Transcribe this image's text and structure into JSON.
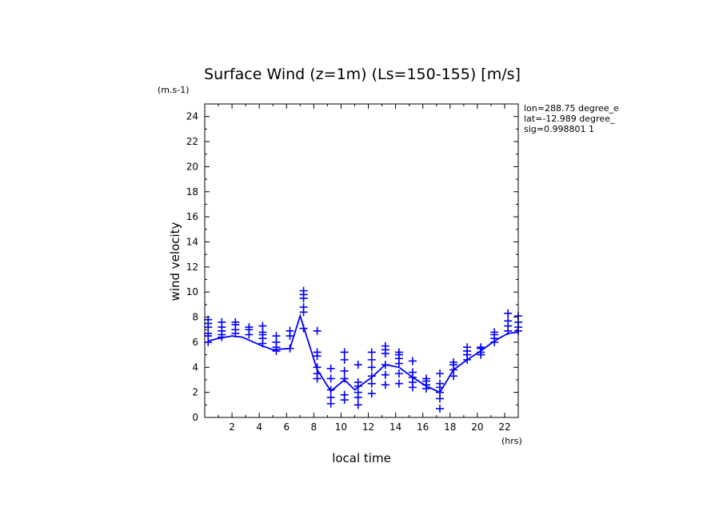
{
  "chart_data": {
    "type": "line",
    "title": "Surface Wind (z=1m) (Ls=150-155) [m/s]",
    "y_unit": "(m.s-1)",
    "x_unit": "(hrs)",
    "xlabel": "local time",
    "ylabel": "wind velocity",
    "xlim": [
      0,
      23
    ],
    "ylim": [
      0,
      25
    ],
    "x_ticks": [
      2,
      4,
      6,
      8,
      10,
      12,
      14,
      16,
      18,
      20,
      22
    ],
    "y_ticks": [
      0,
      2,
      4,
      6,
      8,
      10,
      12,
      14,
      16,
      18,
      20,
      22,
      24
    ],
    "annotations": [
      "lon=288.75 degree_e",
      "lat=-12.989 degree_",
      "sig=0.998801 1"
    ],
    "line_color": "#0000ff",
    "series": [
      {
        "values": [
          {
            "x": 0.25,
            "y": 6.1
          },
          {
            "x": 1.0,
            "y": 6.3
          },
          {
            "x": 2.0,
            "y": 6.5
          },
          {
            "x": 2.75,
            "y": 6.4
          },
          {
            "x": 4.0,
            "y": 5.8
          },
          {
            "x": 5.0,
            "y": 5.4
          },
          {
            "x": 6.25,
            "y": 5.5
          },
          {
            "x": 7.0,
            "y": 8.1
          },
          {
            "x": 8.25,
            "y": 3.8
          },
          {
            "x": 9.25,
            "y": 2.1
          },
          {
            "x": 10.25,
            "y": 3.0
          },
          {
            "x": 11.0,
            "y": 2.2
          },
          {
            "x": 12.25,
            "y": 3.2
          },
          {
            "x": 13.25,
            "y": 4.2
          },
          {
            "x": 14.25,
            "y": 4.0
          },
          {
            "x": 15.25,
            "y": 3.2
          },
          {
            "x": 16.25,
            "y": 2.5
          },
          {
            "x": 17.25,
            "y": 2.0
          },
          {
            "x": 18.25,
            "y": 3.8
          },
          {
            "x": 19.25,
            "y": 4.6
          },
          {
            "x": 20.25,
            "y": 5.3
          },
          {
            "x": 21.25,
            "y": 6.1
          },
          {
            "x": 22.25,
            "y": 6.7
          },
          {
            "x": 23.0,
            "y": 6.8
          }
        ]
      },
      {
        "values": [
          {
            "x": 0.25,
            "y": [
              6.0,
              6.5,
              6.7,
              7.2,
              7.5,
              7.8
            ]
          },
          {
            "x": 1.25,
            "y": [
              6.4,
              6.6,
              6.9,
              7.2,
              7.6
            ]
          },
          {
            "x": 2.25,
            "y": [
              6.7,
              7.0,
              7.4,
              7.6
            ]
          },
          {
            "x": 3.25,
            "y": [
              6.6,
              7.0,
              7.2
            ]
          },
          {
            "x": 4.25,
            "y": [
              5.9,
              6.3,
              6.6,
              6.8,
              7.3
            ]
          },
          {
            "x": 5.25,
            "y": [
              5.3,
              5.6,
              6.0,
              6.5
            ]
          },
          {
            "x": 6.25,
            "y": [
              5.5,
              6.5,
              6.9
            ]
          },
          {
            "x": 7.25,
            "y": [
              7.1,
              8.4,
              8.8,
              9.5,
              9.8,
              10.1
            ]
          },
          {
            "x": 8.25,
            "y": [
              3.1,
              3.5,
              4.0,
              4.9,
              5.2,
              6.9
            ]
          },
          {
            "x": 9.25,
            "y": [
              1.1,
              1.6,
              2.2,
              3.1,
              3.9
            ]
          },
          {
            "x": 10.25,
            "y": [
              1.4,
              1.8,
              3.1,
              3.7,
              4.6,
              5.2
            ]
          },
          {
            "x": 11.25,
            "y": [
              1.0,
              1.6,
              2.0,
              2.5,
              2.8,
              4.2
            ]
          },
          {
            "x": 12.25,
            "y": [
              1.9,
              2.7,
              3.3,
              4.0,
              4.6,
              5.2
            ]
          },
          {
            "x": 13.25,
            "y": [
              2.6,
              3.4,
              4.2,
              5.1,
              5.4,
              5.7
            ]
          },
          {
            "x": 14.25,
            "y": [
              2.7,
              3.5,
              4.3,
              4.7,
              5.0,
              5.2
            ]
          },
          {
            "x": 15.25,
            "y": [
              2.4,
              2.8,
              3.2,
              3.6,
              4.5
            ]
          },
          {
            "x": 16.25,
            "y": [
              2.3,
              2.6,
              2.9,
              3.1
            ]
          },
          {
            "x": 17.25,
            "y": [
              0.7,
              1.5,
              2.0,
              2.4,
              2.7,
              3.5
            ]
          },
          {
            "x": 18.25,
            "y": [
              3.3,
              3.8,
              4.2,
              4.4
            ]
          },
          {
            "x": 19.25,
            "y": [
              4.6,
              5.0,
              5.3,
              5.6
            ]
          },
          {
            "x": 20.25,
            "y": [
              5.0,
              5.2,
              5.5,
              5.6
            ]
          },
          {
            "x": 21.25,
            "y": [
              6.0,
              6.3,
              6.6,
              6.8
            ]
          },
          {
            "x": 22.25,
            "y": [
              6.9,
              7.3,
              7.7,
              8.3
            ]
          },
          {
            "x": 23.0,
            "y": [
              6.9,
              7.2,
              7.6,
              8.1
            ]
          }
        ]
      }
    ]
  }
}
